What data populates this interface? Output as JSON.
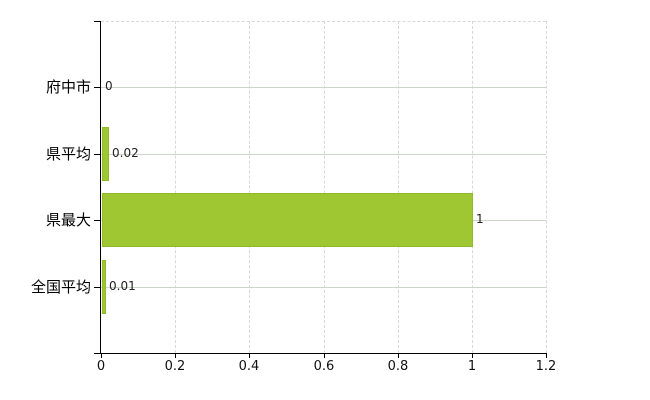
{
  "chart": {
    "colors": {
      "background": "#ffffff",
      "bar_fill": "#9ec732",
      "bar_border": "#90ba27",
      "axis": "#000000",
      "h_grid": "#ccd5c9",
      "v_grid": "#d8d8d8",
      "top_border": "#d8d8d8",
      "category_text": "#000000",
      "value_text": "#222222",
      "tick_text": "#111111"
    }
  },
  "chart_data": {
    "type": "bar",
    "orientation": "horizontal",
    "title": "",
    "categories": [
      "府中市",
      "県平均",
      "県最大",
      "全国平均"
    ],
    "values": [
      0,
      0.02,
      1,
      0.01
    ],
    "value_labels": [
      "0",
      "0.02",
      "1",
      "0.01"
    ],
    "xlabel": "",
    "ylabel": "",
    "xlim": [
      0,
      1.2
    ],
    "x_tick_values": [
      0,
      0.2,
      0.4,
      0.6,
      0.8,
      1,
      1.2
    ],
    "x_tick_labels": [
      "0",
      "0.2",
      "0.4",
      "0.6",
      "0.8",
      "1",
      "1.2"
    ],
    "grid": true,
    "legend": false
  }
}
